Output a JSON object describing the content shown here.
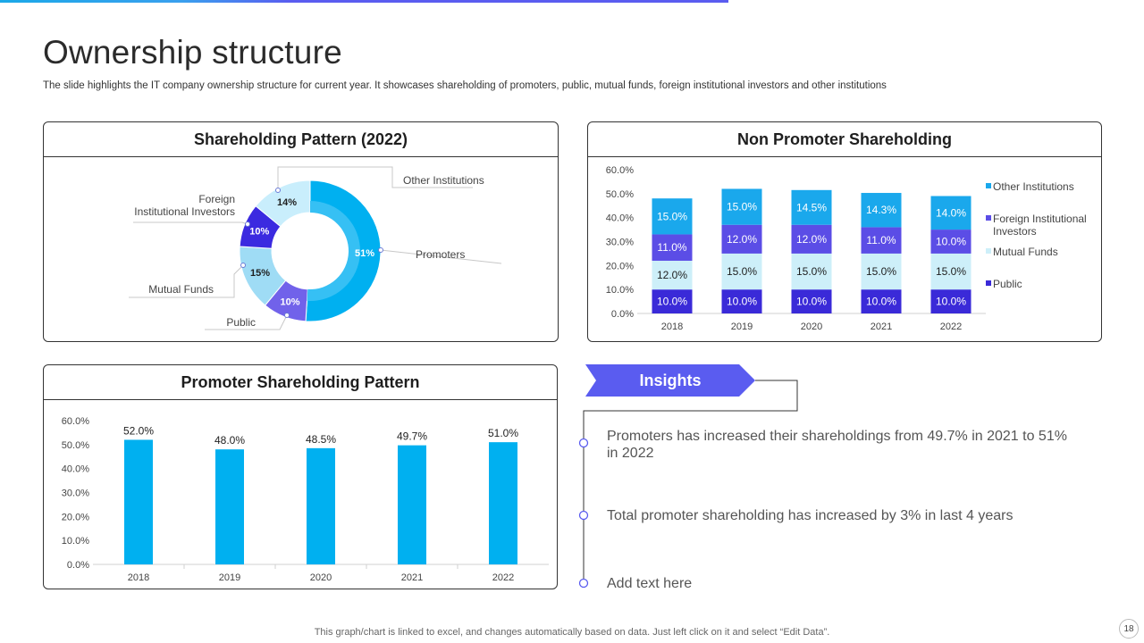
{
  "title": "Ownership structure",
  "subtitle": "The slide highlights the IT company ownership structure for current year.  It showcases shareholding of promoters, public, mutual funds, foreign institutional investors and other institutions",
  "colors": {
    "accent_gradient_start": "#1ba8e8",
    "accent_purple": "#5a5cf0",
    "promoters": "#00b0f0",
    "promoters_inner": "#36c0f4",
    "public": "#7162ea",
    "mutual_funds": "#9fdcf5",
    "foreign_institutional": "#3b2ae0",
    "other_institutions": "#c9eefc",
    "np_other": "#1aa8ec",
    "np_foreign": "#5b4de6",
    "np_mutual": "#cdeff9",
    "np_public": "#3a2ad8",
    "promoter_bar": "#00b0f0"
  },
  "pie_panel": {
    "heading": "Shareholding Pattern (2022)"
  },
  "np_panel": {
    "heading": "Non Promoter Shareholding"
  },
  "pr_panel": {
    "heading": "Promoter Shareholding Pattern"
  },
  "insights": {
    "label": "Insights",
    "items": [
      "Promoters has increased their shareholdings from 49.7% in 2021 to 51% in 2022",
      "Total promoter shareholding has increased by 3% in last 4 years",
      "Add text here"
    ]
  },
  "footer": "This graph/chart is linked to excel,  and changes automatically based on data. Just left click on it and select “Edit Data”.",
  "page_number": "18",
  "chart_data": [
    {
      "type": "pie",
      "title": "Shareholding Pattern (2022)",
      "donut": true,
      "labels": [
        "Promoters",
        "Public",
        "Mutual Funds",
        "Foreign Institutional Investors",
        "Other Institutions"
      ],
      "label_lines": [
        [
          "Promoters"
        ],
        [
          "Public"
        ],
        [
          "Mutual Funds"
        ],
        [
          "Foreign",
          "Institutional Investors"
        ],
        [
          "Other Institutions"
        ]
      ],
      "values": [
        51,
        10,
        15,
        10,
        14
      ],
      "value_labels": [
        "51%",
        "10%",
        "15%",
        "10%",
        "14%"
      ]
    },
    {
      "type": "bar",
      "stacked": true,
      "title": "Non Promoter Shareholding",
      "categories": [
        "2018",
        "2019",
        "2020",
        "2021",
        "2022"
      ],
      "ylim": [
        0,
        60
      ],
      "yticks": [
        "0.0%",
        "10.0%",
        "20.0%",
        "30.0%",
        "40.0%",
        "50.0%",
        "60.0%"
      ],
      "legend_position": "right",
      "series": [
        {
          "name": "Public",
          "values": [
            10,
            10,
            10,
            10,
            10
          ],
          "labels": [
            "10.0%",
            "10.0%",
            "10.0%",
            "10.0%",
            "10.0%"
          ]
        },
        {
          "name": "Mutual Funds",
          "values": [
            12,
            15,
            15,
            15,
            15
          ],
          "labels": [
            "12.0%",
            "15.0%",
            "15.0%",
            "15.0%",
            "15.0%"
          ]
        },
        {
          "name": "Foreign Institutional Investors",
          "values": [
            11,
            12,
            12,
            11,
            10
          ],
          "labels": [
            "11.0%",
            "12.0%",
            "12.0%",
            "11.0%",
            "10.0%"
          ]
        },
        {
          "name": "Other Institutions",
          "values": [
            15,
            15,
            14.5,
            14.3,
            14
          ],
          "labels": [
            "15.0%",
            "15.0%",
            "14.5%",
            "14.3%",
            "14.0%"
          ]
        }
      ],
      "legend_order": [
        "Other Institutions",
        "Foreign Institutional Investors",
        "Mutual Funds",
        "Public"
      ],
      "legend_lines": [
        [
          "Other Institutions"
        ],
        [
          "Foreign Institutional",
          "Investors"
        ],
        [
          "Mutual Funds"
        ],
        [
          "Public"
        ]
      ]
    },
    {
      "type": "bar",
      "title": "Promoter Shareholding Pattern",
      "categories": [
        "2018",
        "2019",
        "2020",
        "2021",
        "2022"
      ],
      "values": [
        52,
        48,
        48.5,
        49.7,
        51
      ],
      "value_labels": [
        "52.0%",
        "48.0%",
        "48.5%",
        "49.7%",
        "51.0%"
      ],
      "ylim": [
        0,
        60
      ],
      "yticks": [
        "0.0%",
        "10.0%",
        "20.0%",
        "30.0%",
        "40.0%",
        "50.0%",
        "60.0%"
      ]
    }
  ]
}
